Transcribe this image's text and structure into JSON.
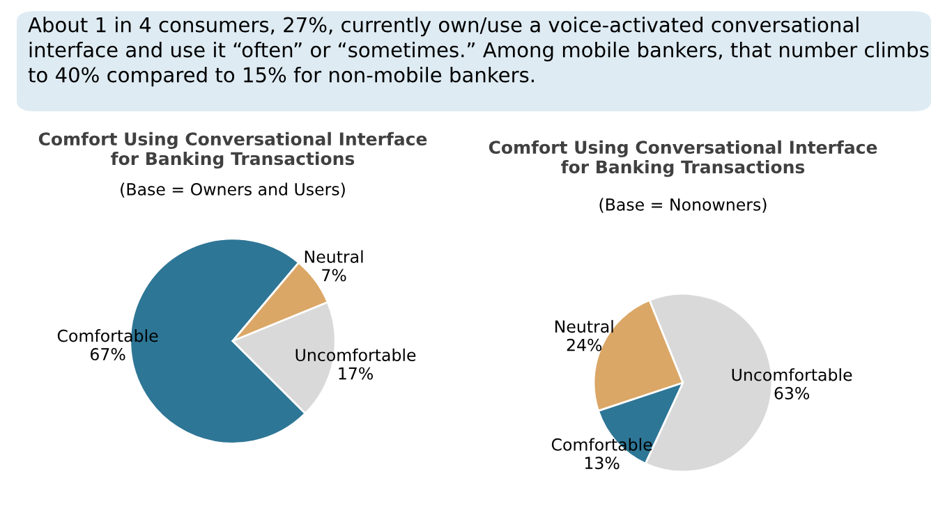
{
  "chart_data": [
    {
      "type": "other",
      "annotations": [
        "About 1 in 4 consumers, 27%, currently own/use a voice-activated conversational interface and use it “often” or “sometimes.” Among mobile bankers, that number climbs to 40% compared to 15% for non-mobile bankers."
      ]
    },
    {
      "type": "pie",
      "title": "Comfort Using Conversational Interface\nfor Banking Transactions",
      "subtitle": "(Base = Owners and Users)",
      "categories": [
        "Comfortable",
        "Neutral",
        "Uncomfortable"
      ],
      "values": [
        67,
        7,
        17
      ],
      "value_labels": [
        "67%",
        "7%",
        "17%"
      ],
      "colors": [
        "#2e7696",
        "#dba766",
        "#d9d9d9"
      ]
    },
    {
      "type": "pie",
      "title": "Comfort Using Conversational Interface\nfor Banking Transactions",
      "subtitle": "(Base = Nonowners)",
      "categories": [
        "Neutral",
        "Comfortable",
        "Uncomfortable"
      ],
      "values": [
        24,
        13,
        63
      ],
      "value_labels": [
        "24%",
        "13%",
        "63%"
      ],
      "colors": [
        "#dba766",
        "#2e7696",
        "#d9d9d9"
      ]
    }
  ]
}
